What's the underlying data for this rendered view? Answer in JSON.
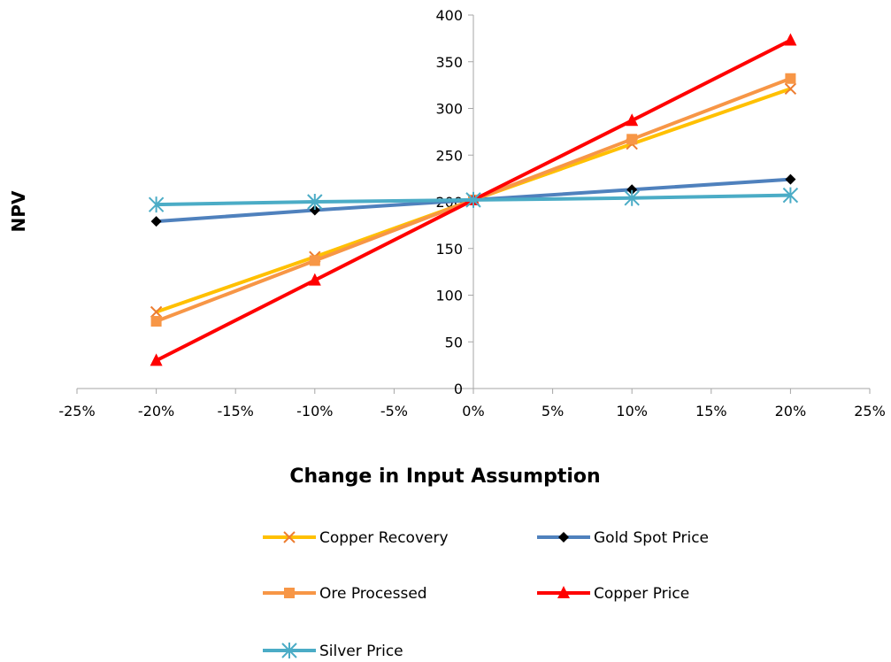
{
  "chart_data": {
    "type": "line",
    "title": "",
    "xlabel": "Change in Input Assumption",
    "ylabel": "NPV",
    "x": [
      -0.2,
      -0.1,
      0.0,
      0.1,
      0.2
    ],
    "xlim": [
      -0.25,
      0.25
    ],
    "ylim": [
      0,
      400
    ],
    "x_ticks": [
      "-25%",
      "-20%",
      "-15%",
      "-10%",
      "-5%",
      "0%",
      "5%",
      "10%",
      "15%",
      "20%",
      "25%"
    ],
    "y_ticks": [
      "0",
      "50",
      "100",
      "150",
      "200",
      "250",
      "300",
      "350",
      "400"
    ],
    "grid": false,
    "legend_position": "bottom",
    "series": [
      {
        "name": "Copper Recovery",
        "color": "#FFC000",
        "marker": "x",
        "marker_color": "#ED7D31",
        "values": [
          82,
          141,
          202,
          262,
          321
        ]
      },
      {
        "name": "Gold Spot Price",
        "color": "#4F81BD",
        "marker": "diamond",
        "marker_color": "#000000",
        "values": [
          179,
          191,
          202,
          213,
          224
        ]
      },
      {
        "name": "Ore Processed",
        "color": "#F79646",
        "marker": "square",
        "marker_color": "#F79646",
        "values": [
          72,
          137,
          202,
          267,
          332
        ]
      },
      {
        "name": "Copper Price",
        "color": "#FF0000",
        "marker": "triangle",
        "marker_color": "#FF0000",
        "values": [
          30,
          116,
          202,
          287,
          373
        ]
      },
      {
        "name": "Silver Price",
        "color": "#4BACC6",
        "marker": "star",
        "marker_color": "#4BACC6",
        "values": [
          197,
          200,
          202,
          204,
          207
        ]
      }
    ]
  }
}
